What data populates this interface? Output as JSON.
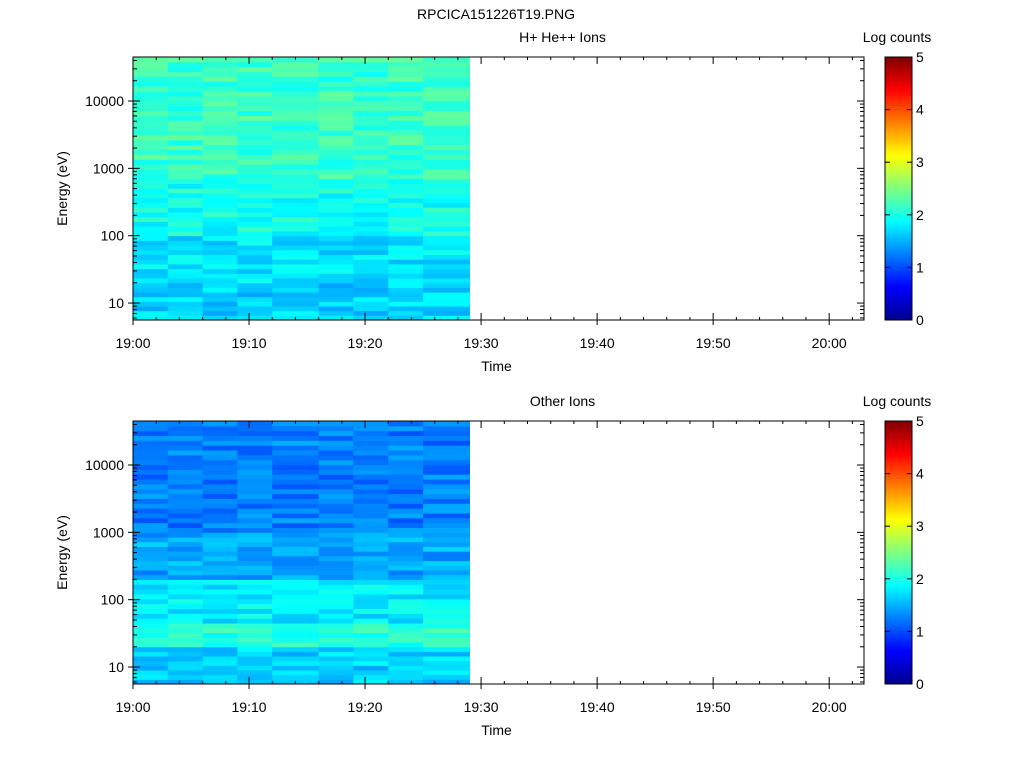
{
  "figure_title": "RPCICA151226T19.PNG",
  "colormap": [
    "#00008f",
    "#0000ff",
    "#007fff",
    "#00ffff",
    "#7fff7f",
    "#ffff00",
    "#ff7f00",
    "#ff0000",
    "#7f0000"
  ],
  "chart_data": [
    {
      "type": "heatmap",
      "title": "H+ He++ Ions",
      "xlabel": "Time",
      "ylabel": "Energy (eV)",
      "x_ticks": [
        "19:00",
        "19:10",
        "19:20",
        "19:30",
        "19:40",
        "19:50",
        "20:00"
      ],
      "x_range": [
        "19:00",
        "20:03"
      ],
      "data_end_time": "19:29",
      "y_scale": "log",
      "y_ticks": [
        "10",
        "100",
        "1000",
        "10000"
      ],
      "y_range": [
        5.6,
        45000
      ],
      "colorbar_label": "Log counts",
      "colorbar_ticks": [
        "0",
        "1",
        "2",
        "3",
        "4",
        "5"
      ],
      "colorbar_range": [
        0,
        5
      ],
      "time_bins": [
        "19:00",
        "19:03",
        "19:06",
        "19:09",
        "19:12",
        "19:16",
        "19:19",
        "19:22",
        "19:25"
      ],
      "energy_bands": [
        {
          "range_eV": [
            5.6,
            20
          ],
          "log_counts": 1.65
        },
        {
          "range_eV": [
            20,
            100
          ],
          "log_counts": 1.75
        },
        {
          "range_eV": [
            100,
            700
          ],
          "log_counts": 1.95
        },
        {
          "range_eV": [
            700,
            45000
          ],
          "log_counts": 2.15
        }
      ]
    },
    {
      "type": "heatmap",
      "title": "Other Ions",
      "xlabel": "Time",
      "ylabel": "Energy (eV)",
      "x_ticks": [
        "19:00",
        "19:10",
        "19:20",
        "19:30",
        "19:40",
        "19:50",
        "20:00"
      ],
      "x_range": [
        "19:00",
        "20:03"
      ],
      "data_end_time": "19:29",
      "y_scale": "log",
      "y_ticks": [
        "10",
        "100",
        "1000",
        "10000"
      ],
      "y_range": [
        5.6,
        45000
      ],
      "colorbar_label": "Log counts",
      "colorbar_ticks": [
        "0",
        "1",
        "2",
        "3",
        "4",
        "5"
      ],
      "colorbar_range": [
        0,
        5
      ],
      "time_bins": [
        "19:00",
        "19:03",
        "19:06",
        "19:09",
        "19:12",
        "19:16",
        "19:19",
        "19:22",
        "19:25"
      ],
      "energy_bands": [
        {
          "range_eV": [
            5.6,
            20
          ],
          "log_counts": 1.65
        },
        {
          "range_eV": [
            20,
            45
          ],
          "log_counts": 2.05
        },
        {
          "range_eV": [
            45,
            200
          ],
          "log_counts": 1.8
        },
        {
          "range_eV": [
            200,
            1000
          ],
          "log_counts": 1.45
        },
        {
          "range_eV": [
            1000,
            45000
          ],
          "log_counts": 1.25
        }
      ]
    }
  ]
}
